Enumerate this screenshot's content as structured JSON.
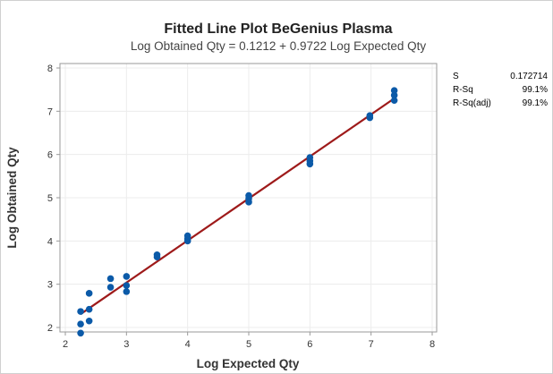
{
  "chart_data": {
    "type": "scatter",
    "title": "Fitted Line Plot BeGenius Plasma",
    "subtitle": "Log Obtained Qty = 0.1212 + 0.9722 Log Expected Qty",
    "xlabel": "Log Expected Qty",
    "ylabel": "Log Obtained Qty",
    "xlim": [
      2,
      8
    ],
    "ylim": [
      2,
      8
    ],
    "xticks": [
      "2",
      "3",
      "4",
      "5",
      "6",
      "7",
      "8"
    ],
    "yticks": [
      "2",
      "3",
      "4",
      "5",
      "6",
      "7",
      "8"
    ],
    "grid": true,
    "fit": {
      "intercept": 0.1212,
      "slope": 0.9722,
      "x_range": [
        2.25,
        7.38
      ]
    },
    "points": [
      {
        "x": 2.25,
        "y": 1.87
      },
      {
        "x": 2.25,
        "y": 2.08
      },
      {
        "x": 2.25,
        "y": 2.37
      },
      {
        "x": 2.39,
        "y": 2.15
      },
      {
        "x": 2.39,
        "y": 2.42
      },
      {
        "x": 2.39,
        "y": 2.79
      },
      {
        "x": 2.74,
        "y": 2.93
      },
      {
        "x": 2.74,
        "y": 3.13
      },
      {
        "x": 3.0,
        "y": 2.83
      },
      {
        "x": 3.0,
        "y": 2.97
      },
      {
        "x": 3.0,
        "y": 3.18
      },
      {
        "x": 3.5,
        "y": 3.63
      },
      {
        "x": 3.5,
        "y": 3.68
      },
      {
        "x": 4.0,
        "y": 4.0
      },
      {
        "x": 4.0,
        "y": 4.05
      },
      {
        "x": 4.0,
        "y": 4.12
      },
      {
        "x": 5.0,
        "y": 4.9
      },
      {
        "x": 5.0,
        "y": 4.98
      },
      {
        "x": 5.0,
        "y": 5.05
      },
      {
        "x": 6.0,
        "y": 5.78
      },
      {
        "x": 6.0,
        "y": 5.85
      },
      {
        "x": 6.0,
        "y": 5.93
      },
      {
        "x": 6.98,
        "y": 6.85
      },
      {
        "x": 6.98,
        "y": 6.9
      },
      {
        "x": 7.38,
        "y": 7.25
      },
      {
        "x": 7.38,
        "y": 7.37
      },
      {
        "x": 7.38,
        "y": 7.48
      }
    ],
    "colors": {
      "points": "#0b5aa8",
      "fit_line": "#9e1a1a",
      "grid": "#ececec",
      "axis": "#9a9a9a"
    }
  },
  "stats": [
    {
      "label": "S",
      "value": "0.172714"
    },
    {
      "label": "R-Sq",
      "value": "99.1%"
    },
    {
      "label": "R-Sq(adj)",
      "value": "99.1%"
    }
  ]
}
